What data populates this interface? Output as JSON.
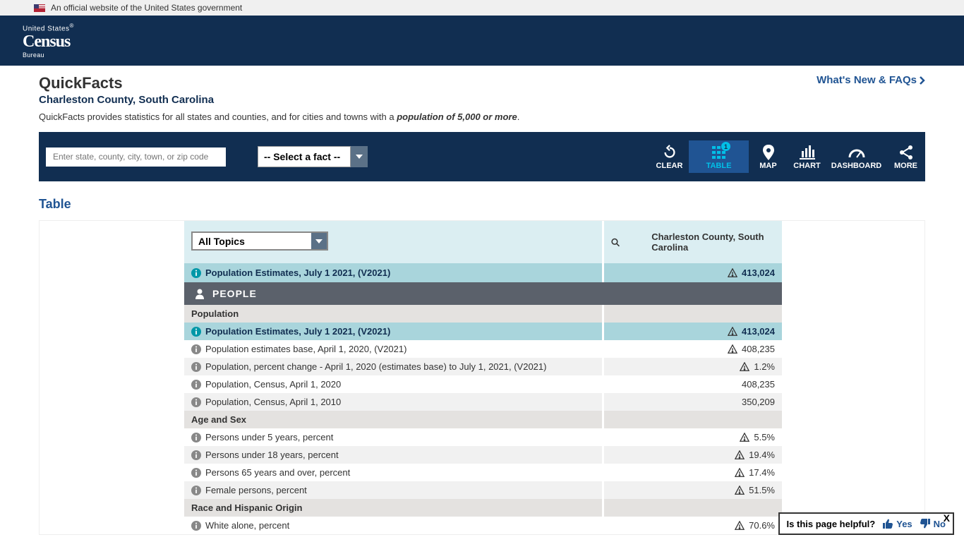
{
  "gov_banner": "An official website of the United States government",
  "logo": {
    "line1": "United States",
    "line2": "Census",
    "line3": "Bureau",
    "reg": "®"
  },
  "page": {
    "title": "QuickFacts",
    "subtitle": "Charleston County, South Carolina",
    "desc_prefix": "QuickFacts provides statistics for all states and counties, and for cities and towns with a ",
    "desc_bold": "population of 5,000 or more",
    "whats_new": "What's New & FAQs"
  },
  "toolbar": {
    "search_placeholder": "Enter state, county, city, town, or zip code",
    "fact_placeholder": "-- Select a fact --",
    "clear": "CLEAR",
    "table": "TABLE",
    "map": "MAP",
    "chart": "CHART",
    "dashboard": "DASHBOARD",
    "more": "MORE",
    "badge": "1"
  },
  "section_title": "Table",
  "table": {
    "topic_select": "All Topics",
    "geo_name": "Charleston County, South Carolina",
    "top_estimate_label": "Population Estimates, July 1 2021, (V2021)",
    "top_estimate_value": "413,024",
    "people_header": "PEOPLE",
    "groups": [
      {
        "name": "Population",
        "rows": [
          {
            "label": "Population Estimates, July 1 2021, (V2021)",
            "value": "413,024",
            "hl": true,
            "warn": true
          },
          {
            "label": "Population estimates base, April 1, 2020, (V2021)",
            "value": "408,235",
            "warn": true
          },
          {
            "label": "Population, percent change - April 1, 2020 (estimates base) to July 1, 2021, (V2021)",
            "value": "1.2%",
            "warn": true,
            "alt": true
          },
          {
            "label": "Population, Census, April 1, 2020",
            "value": "408,235"
          },
          {
            "label": "Population, Census, April 1, 2010",
            "value": "350,209",
            "alt": true
          }
        ]
      },
      {
        "name": "Age and Sex",
        "rows": [
          {
            "label": "Persons under 5 years, percent",
            "value": "5.5%",
            "warn": true
          },
          {
            "label": "Persons under 18 years, percent",
            "value": "19.4%",
            "warn": true,
            "alt": true
          },
          {
            "label": "Persons 65 years and over, percent",
            "value": "17.4%",
            "warn": true
          },
          {
            "label": "Female persons, percent",
            "value": "51.5%",
            "warn": true,
            "alt": true
          }
        ]
      },
      {
        "name": "Race and Hispanic Origin",
        "rows": [
          {
            "label": "White alone, percent",
            "value": "70.6%",
            "warn": true
          }
        ]
      }
    ]
  },
  "feedback": {
    "q": "Is this page helpful?",
    "yes": "Yes",
    "no": "No"
  }
}
